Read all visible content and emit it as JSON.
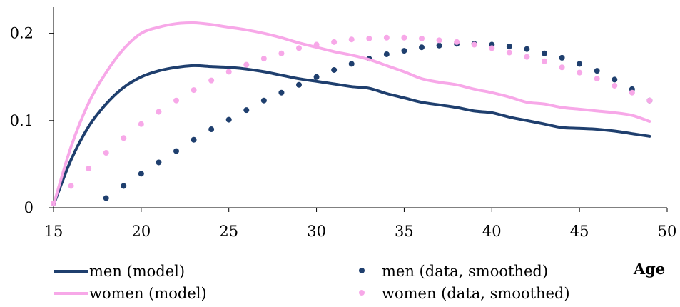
{
  "chart_data": {
    "type": "line",
    "xlabel": "Age",
    "ylabel": "",
    "xlim": [
      15,
      50
    ],
    "ylim": [
      0,
      0.23
    ],
    "xticks": [
      15,
      20,
      25,
      30,
      35,
      40,
      45,
      50
    ],
    "xtick_labels": [
      "15",
      "20",
      "25",
      "30",
      "35",
      "40",
      "45",
      "50"
    ],
    "yticks": [
      0,
      0.1,
      0.2
    ],
    "ytick_labels": [
      "0",
      "0.1",
      "0.2"
    ],
    "grid": false,
    "legend_position": "bottom",
    "colors": {
      "men": "#1f3f6e",
      "women": "#f7a8e8"
    },
    "series": [
      {
        "name": "men (model)",
        "style": "line",
        "color": "#1f3f6e",
        "x": [
          15,
          16,
          17,
          18,
          19,
          20,
          21,
          22,
          23,
          24,
          25,
          26,
          27,
          28,
          29,
          30,
          31,
          32,
          33,
          34,
          35,
          36,
          37,
          38,
          39,
          40,
          41,
          42,
          43,
          44,
          45,
          46,
          47,
          48,
          49
        ],
        "y": [
          0.003,
          0.055,
          0.093,
          0.119,
          0.138,
          0.15,
          0.157,
          0.161,
          0.163,
          0.162,
          0.161,
          0.159,
          0.156,
          0.152,
          0.148,
          0.145,
          0.142,
          0.139,
          0.137,
          0.131,
          0.126,
          0.121,
          0.118,
          0.115,
          0.111,
          0.109,
          0.104,
          0.1,
          0.096,
          0.092,
          0.091,
          0.09,
          0.088,
          0.085,
          0.082
        ]
      },
      {
        "name": "women (model)",
        "style": "line",
        "color": "#f7a8e8",
        "x": [
          15,
          16,
          17,
          18,
          19,
          20,
          21,
          22,
          23,
          24,
          25,
          26,
          27,
          28,
          29,
          30,
          31,
          32,
          33,
          34,
          35,
          36,
          37,
          38,
          39,
          40,
          41,
          42,
          43,
          44,
          45,
          46,
          47,
          48,
          49
        ],
        "y": [
          0.003,
          0.07,
          0.12,
          0.155,
          0.182,
          0.2,
          0.207,
          0.211,
          0.212,
          0.21,
          0.207,
          0.204,
          0.2,
          0.195,
          0.189,
          0.184,
          0.179,
          0.175,
          0.17,
          0.163,
          0.156,
          0.148,
          0.144,
          0.141,
          0.136,
          0.132,
          0.127,
          0.121,
          0.119,
          0.115,
          0.113,
          0.111,
          0.109,
          0.106,
          0.099
        ]
      },
      {
        "name": "men (data, smoothed)",
        "style": "dots",
        "color": "#1f3f6e",
        "x": [
          18,
          19,
          20,
          21,
          22,
          23,
          24,
          25,
          26,
          27,
          28,
          29,
          30,
          31,
          32,
          33,
          34,
          35,
          36,
          37,
          38,
          39,
          40,
          41,
          42,
          43,
          44,
          45,
          46,
          47,
          48,
          49
        ],
        "y": [
          0.011,
          0.025,
          0.039,
          0.052,
          0.065,
          0.078,
          0.09,
          0.101,
          0.112,
          0.123,
          0.132,
          0.141,
          0.15,
          0.158,
          0.165,
          0.171,
          0.176,
          0.18,
          0.184,
          0.186,
          0.188,
          0.188,
          0.187,
          0.185,
          0.182,
          0.177,
          0.172,
          0.165,
          0.157,
          0.147,
          0.136,
          0.123
        ]
      },
      {
        "name": "women (data, smoothed)",
        "style": "dots",
        "color": "#f7a8e8",
        "x": [
          15,
          16,
          17,
          18,
          19,
          20,
          21,
          22,
          23,
          24,
          25,
          26,
          27,
          28,
          29,
          30,
          31,
          32,
          33,
          34,
          35,
          36,
          37,
          38,
          39,
          40,
          41,
          42,
          43,
          44,
          45,
          46,
          47,
          48,
          49
        ],
        "y": [
          0.005,
          0.025,
          0.045,
          0.063,
          0.08,
          0.096,
          0.11,
          0.123,
          0.135,
          0.146,
          0.156,
          0.164,
          0.171,
          0.177,
          0.183,
          0.187,
          0.19,
          0.193,
          0.194,
          0.195,
          0.195,
          0.194,
          0.192,
          0.19,
          0.187,
          0.183,
          0.178,
          0.173,
          0.168,
          0.161,
          0.155,
          0.148,
          0.14,
          0.132,
          0.123
        ]
      }
    ],
    "legend": [
      {
        "label": "men (model)",
        "marker": "line",
        "color": "#1f3f6e"
      },
      {
        "label": "men (data, smoothed)",
        "marker": "dot",
        "color": "#1f3f6e"
      },
      {
        "label": "women (model)",
        "marker": "line",
        "color": "#f7a8e8"
      },
      {
        "label": "women (data, smoothed)",
        "marker": "dot",
        "color": "#f7a8e8"
      }
    ]
  }
}
